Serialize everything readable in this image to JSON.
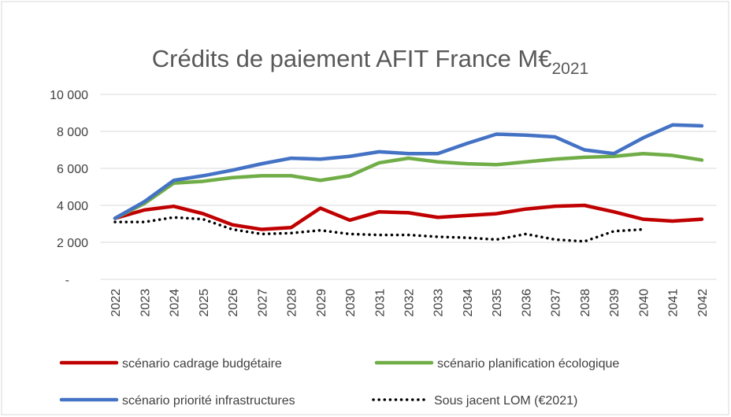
{
  "chart_data": {
    "type": "line",
    "title": "Crédits de paiement AFIT France M€",
    "title_subscript": "2021",
    "categories": [
      "2022",
      "2023",
      "2024",
      "2025",
      "2026",
      "2027",
      "2028",
      "2029",
      "2030",
      "2031",
      "2032",
      "2033",
      "2034",
      "2035",
      "2036",
      "2037",
      "2038",
      "2039",
      "2040",
      "2041",
      "2042"
    ],
    "series": [
      {
        "name": "scénario cadrage budgétaire",
        "color": "#c00000",
        "style": "solid",
        "values": [
          3300,
          3750,
          3950,
          3550,
          2950,
          2700,
          2800,
          3850,
          3200,
          3650,
          3600,
          3350,
          3450,
          3550,
          3800,
          3950,
          4000,
          3650,
          3250,
          3150,
          3250
        ]
      },
      {
        "name": "scénario planification écologique",
        "color": "#70ad47",
        "style": "solid",
        "values": [
          3300,
          4100,
          5200,
          5300,
          5500,
          5600,
          5600,
          5350,
          5600,
          6300,
          6550,
          6350,
          6250,
          6200,
          6350,
          6500,
          6600,
          6650,
          6800,
          6700,
          6450
        ]
      },
      {
        "name": "scénario priorité infrastructures",
        "color": "#4472c4",
        "style": "solid",
        "values": [
          3300,
          4200,
          5350,
          5600,
          5900,
          6250,
          6550,
          6500,
          6650,
          6900,
          6800,
          6800,
          7350,
          7850,
          7800,
          7700,
          7000,
          6800,
          7650,
          8350,
          8300
        ]
      },
      {
        "name": "Sous jacent LOM (€2021)",
        "color": "#000000",
        "style": "dotted",
        "values": [
          3100,
          3100,
          3350,
          3250,
          2700,
          2450,
          2500,
          2650,
          2450,
          2400,
          2400,
          2300,
          2250,
          2150,
          2450,
          2150,
          2050,
          2600,
          2700,
          null,
          null
        ]
      }
    ],
    "ylim": [
      0,
      10000
    ],
    "yticks": [
      {
        "value": 0,
        "label": "-"
      },
      {
        "value": 2000,
        "label": "2 000"
      },
      {
        "value": 4000,
        "label": "4 000"
      },
      {
        "value": 6000,
        "label": "6 000"
      },
      {
        "value": 8000,
        "label": "8 000"
      },
      {
        "value": 10000,
        "label": "10 000"
      }
    ],
    "grid": true
  }
}
